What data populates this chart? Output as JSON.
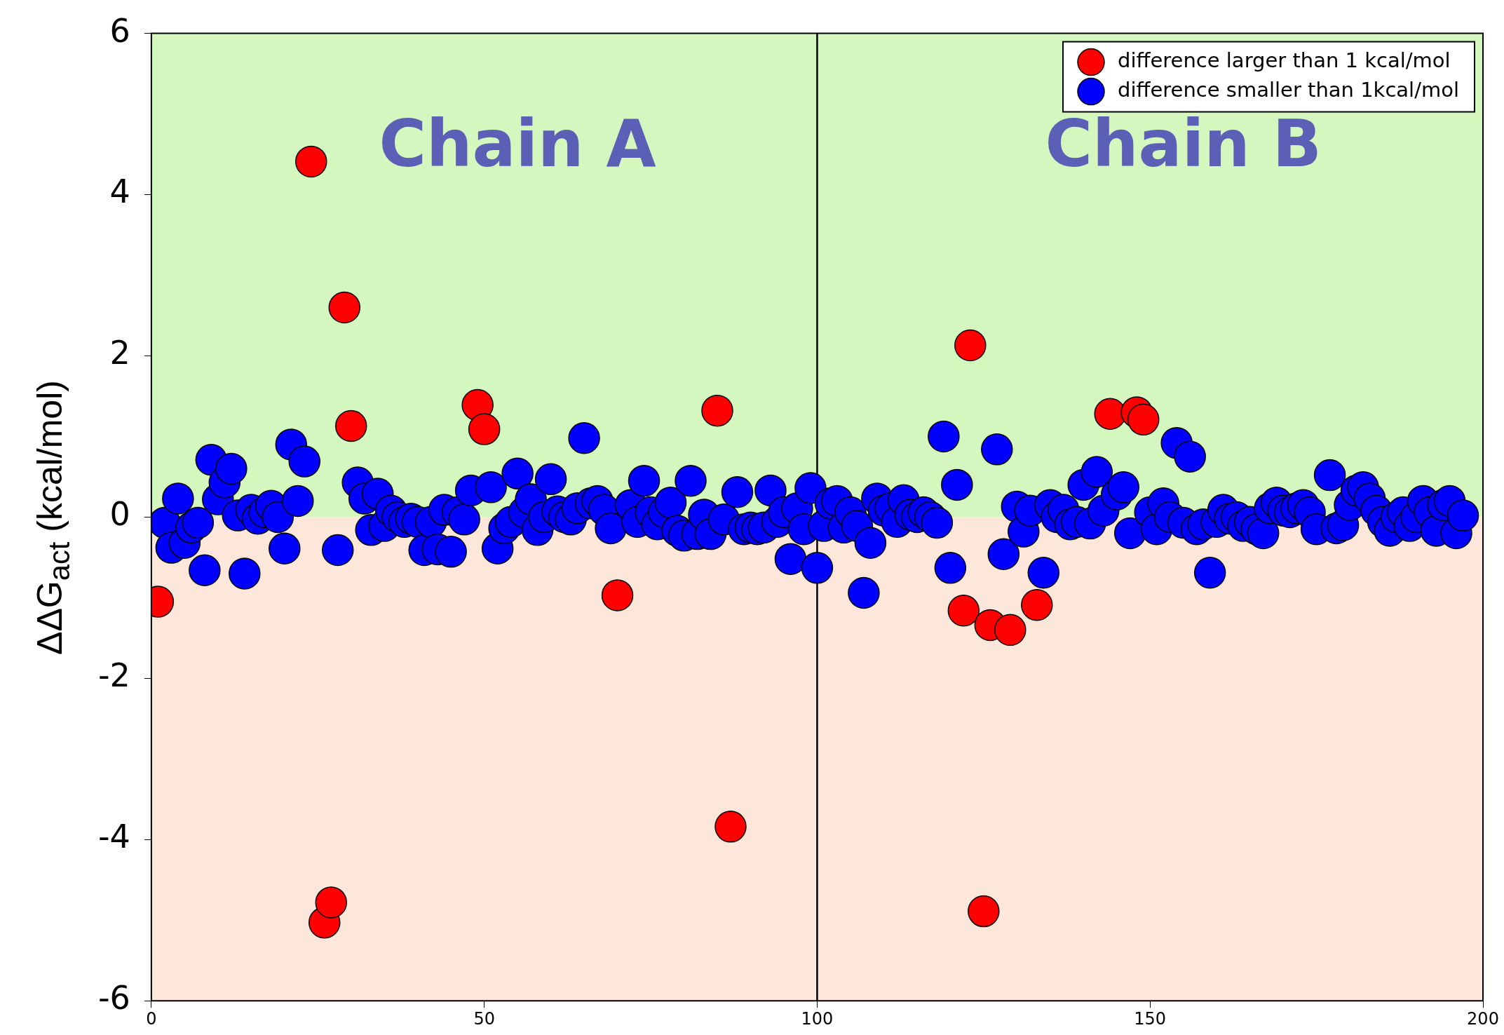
{
  "chart_data": {
    "type": "scatter",
    "ylabel": "ΔΔG$_{act}$ (kcal/mol)",
    "xlim": [
      0,
      200
    ],
    "xticks": [
      0,
      50,
      100,
      150,
      200
    ],
    "ylim": [
      -6,
      6
    ],
    "yticks": [
      -6,
      -4,
      -2,
      0,
      2,
      4,
      6
    ],
    "grid": false,
    "legend": "top right",
    "marker": "circle",
    "bands": [
      {
        "axis": "y",
        "from": 0,
        "to": 6,
        "color": "#d4f7c0"
      },
      {
        "axis": "y",
        "from": -6,
        "to": 0,
        "color": "#fde6da"
      }
    ],
    "ref_lines": [
      {
        "axis": "x",
        "value": 100,
        "color": "#000000",
        "line_style": "solid"
      }
    ],
    "annotations": [
      "Chain A",
      "Chain B"
    ],
    "series": [
      {
        "name": "difference larger than 1 kcal/mol",
        "color": "#ff0000",
        "x": [
          1,
          24,
          26,
          27,
          29,
          30,
          49,
          50,
          70,
          85,
          87,
          122,
          123,
          125,
          126,
          129,
          133,
          144,
          148,
          149
        ],
        "values": [
          -1.05,
          4.41,
          -5.03,
          -4.78,
          2.6,
          1.13,
          1.39,
          1.09,
          -0.97,
          1.32,
          -3.84,
          -1.16,
          2.13,
          -4.89,
          -1.34,
          -1.4,
          -1.09,
          1.28,
          1.3,
          1.21
        ]
      },
      {
        "name": "difference smaller than 1kcal/mol",
        "color": "#0000ff",
        "x": [
          2,
          3,
          4,
          5,
          6,
          7,
          8,
          9,
          10,
          11,
          12,
          13,
          14,
          15,
          16,
          17,
          18,
          19,
          20,
          21,
          22,
          23,
          28,
          31,
          32,
          33,
          34,
          35,
          36,
          37,
          38,
          39,
          40,
          41,
          42,
          43,
          44,
          45,
          46,
          47,
          48,
          51,
          52,
          53,
          54,
          55,
          56,
          57,
          58,
          59,
          60,
          61,
          62,
          63,
          64,
          65,
          66,
          67,
          68,
          69,
          72,
          73,
          74,
          75,
          76,
          77,
          78,
          79,
          80,
          81,
          82,
          83,
          84,
          86,
          88,
          89,
          90,
          91,
          92,
          93,
          94,
          95,
          96,
          97,
          98,
          99,
          100,
          101,
          102,
          103,
          104,
          105,
          106,
          107,
          108,
          109,
          110,
          111,
          112,
          113,
          114,
          115,
          116,
          117,
          118,
          119,
          120,
          121,
          127,
          128,
          130,
          131,
          132,
          134,
          135,
          136,
          137,
          138,
          139,
          140,
          141,
          142,
          143,
          145,
          146,
          147,
          150,
          151,
          152,
          153,
          154,
          155,
          156,
          157,
          158,
          159,
          160,
          161,
          162,
          163,
          164,
          165,
          166,
          167,
          168,
          169,
          170,
          171,
          172,
          173,
          174,
          175,
          177,
          178,
          179,
          180,
          181,
          182,
          183,
          184,
          185,
          186,
          187,
          188,
          189,
          190,
          191,
          192,
          193,
          194,
          195,
          196,
          197
        ],
        "values": [
          -0.07,
          -0.38,
          0.23,
          -0.32,
          -0.13,
          -0.07,
          -0.66,
          0.71,
          0.22,
          0.43,
          0.6,
          0.02,
          -0.7,
          0.09,
          -0.02,
          0.06,
          0.14,
          0,
          -0.39,
          0.9,
          0.2,
          0.69,
          -0.41,
          0.43,
          0.23,
          -0.16,
          0.29,
          -0.11,
          0.08,
          0,
          -0.06,
          -0.02,
          -0.06,
          -0.41,
          -0.06,
          -0.4,
          0.09,
          -0.43,
          0.06,
          -0.03,
          0.33,
          0.37,
          -0.39,
          -0.14,
          -0.06,
          0.54,
          0.06,
          0.22,
          -0.16,
          0,
          0.47,
          0.07,
          0,
          -0.03,
          0.11,
          0.98,
          0.17,
          0.2,
          0.09,
          -0.14,
          0.15,
          -0.06,
          0.45,
          0.06,
          -0.09,
          0.06,
          0.18,
          -0.17,
          -0.23,
          0.45,
          -0.21,
          0.03,
          -0.21,
          -0.03,
          0.31,
          -0.15,
          -0.13,
          -0.15,
          -0.13,
          0.33,
          -0.06,
          0.06,
          -0.52,
          0.11,
          -0.15,
          0.36,
          -0.63,
          -0.11,
          0.17,
          0.2,
          -0.13,
          0.06,
          -0.11,
          -0.94,
          -0.32,
          0.23,
          0.08,
          0.11,
          -0.06,
          0.21,
          0.03,
          0,
          0.06,
          0,
          -0.07,
          1,
          -0.63,
          0.4,
          0.84,
          -0.46,
          0.13,
          -0.18,
          0.08,
          -0.69,
          0.15,
          0,
          0.09,
          -0.09,
          -0.06,
          0.4,
          -0.08,
          0.56,
          0.08,
          0.28,
          0.37,
          -0.2,
          0.06,
          -0.15,
          0.17,
          0,
          0.92,
          -0.07,
          0.75,
          -0.15,
          -0.09,
          -0.69,
          -0.06,
          0.09,
          -0.02,
          0,
          -0.11,
          -0.06,
          -0.15,
          -0.2,
          0.11,
          0.18,
          0.08,
          0.06,
          0.11,
          0.15,
          0.06,
          -0.15,
          0.52,
          -0.14,
          -0.1,
          0.15,
          0.33,
          0.37,
          0.23,
          0.08,
          -0.06,
          -0.17,
          0,
          0.06,
          -0.11,
          0,
          0.2,
          0.06,
          -0.17,
          0.15,
          0.2,
          -0.2,
          0.02
        ]
      }
    ]
  }
}
